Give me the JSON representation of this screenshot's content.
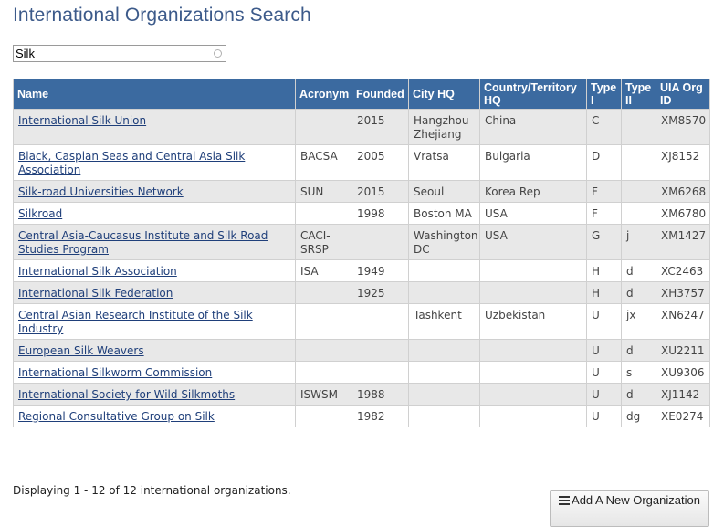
{
  "page": {
    "title": "International Organizations Search"
  },
  "search": {
    "value": "Silk"
  },
  "table": {
    "headers": [
      "Name",
      "Acronym",
      "Founded",
      "City HQ",
      "Country/Territory HQ",
      "Type I",
      "Type II",
      "UIA Org ID"
    ],
    "rows": [
      [
        "International Silk Union",
        "",
        "2015",
        "Hangzhou Zhejiang",
        "China",
        "C",
        "",
        "XM8570"
      ],
      [
        "Black, Caspian Seas and Central Asia Silk Association",
        "BACSA",
        "2005",
        "Vratsa",
        "Bulgaria",
        "D",
        "",
        "XJ8152"
      ],
      [
        "Silk-road Universities Network",
        "SUN",
        "2015",
        "Seoul",
        "Korea Rep",
        "F",
        "",
        "XM6268"
      ],
      [
        "Silkroad",
        "",
        "1998",
        "Boston MA",
        "USA",
        "F",
        "",
        "XM6780"
      ],
      [
        "Central Asia-Caucasus Institute and Silk Road Studies Program",
        "CACI-SRSP",
        "",
        "Washington DC",
        "USA",
        "G",
        "j",
        "XM1427"
      ],
      [
        "International Silk Association",
        "ISA",
        "1949",
        "",
        "",
        "H",
        "d",
        "XC2463"
      ],
      [
        "International Silk Federation",
        "",
        "1925",
        "",
        "",
        "H",
        "d",
        "XH3757"
      ],
      [
        "Central Asian Research Institute of the Silk Industry",
        "",
        "",
        "Tashkent",
        "Uzbekistan",
        "U",
        "jx",
        "XN6247"
      ],
      [
        "European Silk Weavers",
        "",
        "",
        "",
        "",
        "U",
        "d",
        "XU2211"
      ],
      [
        "International Silkworm Commission",
        "",
        "",
        "",
        "",
        "U",
        "s",
        "XU9306"
      ],
      [
        "International Society for Wild Silkmoths",
        "ISWSM",
        "1988",
        "",
        "",
        "U",
        "d",
        "XJ1142"
      ],
      [
        "Regional Consultative Group on Silk",
        "",
        "1982",
        "",
        "",
        "U",
        "dg",
        "XE0274"
      ]
    ]
  },
  "footer": {
    "status": "Displaying 1 - 12 of 12 international organizations."
  },
  "actions": {
    "add_label": "Add A New Organization"
  },
  "colors": {
    "header_bg": "#3b6aa0",
    "title": "#3c5a8a",
    "link": "#1f3f7a",
    "row_alt": "#e8e8e8"
  }
}
